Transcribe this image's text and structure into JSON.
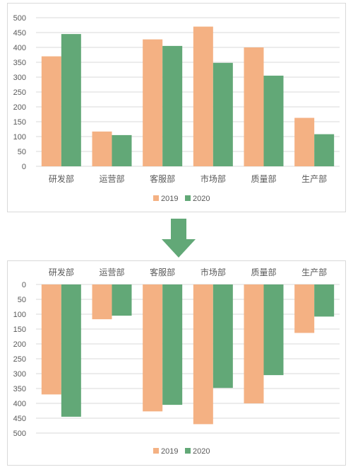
{
  "colors": {
    "s2019": "#f4b183",
    "s2020": "#62a877",
    "grid": "#d9d9d9",
    "arrow": "#62a877"
  },
  "arrow_icon": "down-arrow-icon",
  "chart_data": [
    {
      "type": "bar",
      "orientation": "normal",
      "categories": [
        "研发部",
        "运营部",
        "客服部",
        "市场部",
        "质量部",
        "生产部"
      ],
      "series": [
        {
          "name": "2019",
          "values": [
            370,
            117,
            427,
            470,
            400,
            163
          ]
        },
        {
          "name": "2020",
          "values": [
            445,
            105,
            405,
            348,
            305,
            108
          ]
        }
      ],
      "yticks": [
        "0",
        "50",
        "100",
        "150",
        "200",
        "250",
        "300",
        "350",
        "400",
        "450",
        "500"
      ],
      "ylim": [
        0,
        500
      ],
      "grid": true,
      "legend": "bottom",
      "legend_labels": [
        "2019",
        "2020"
      ]
    },
    {
      "type": "bar",
      "orientation": "reversed-y",
      "categories": [
        "研发部",
        "运营部",
        "客服部",
        "市场部",
        "质量部",
        "生产部"
      ],
      "series": [
        {
          "name": "2019",
          "values": [
            370,
            117,
            427,
            470,
            400,
            163
          ]
        },
        {
          "name": "2020",
          "values": [
            445,
            105,
            405,
            348,
            305,
            108
          ]
        }
      ],
      "yticks": [
        "0",
        "50",
        "100",
        "150",
        "200",
        "250",
        "300",
        "350",
        "400",
        "450",
        "500"
      ],
      "ylim": [
        0,
        500
      ],
      "grid": true,
      "legend": "bottom",
      "legend_labels": [
        "2019",
        "2020"
      ]
    }
  ]
}
